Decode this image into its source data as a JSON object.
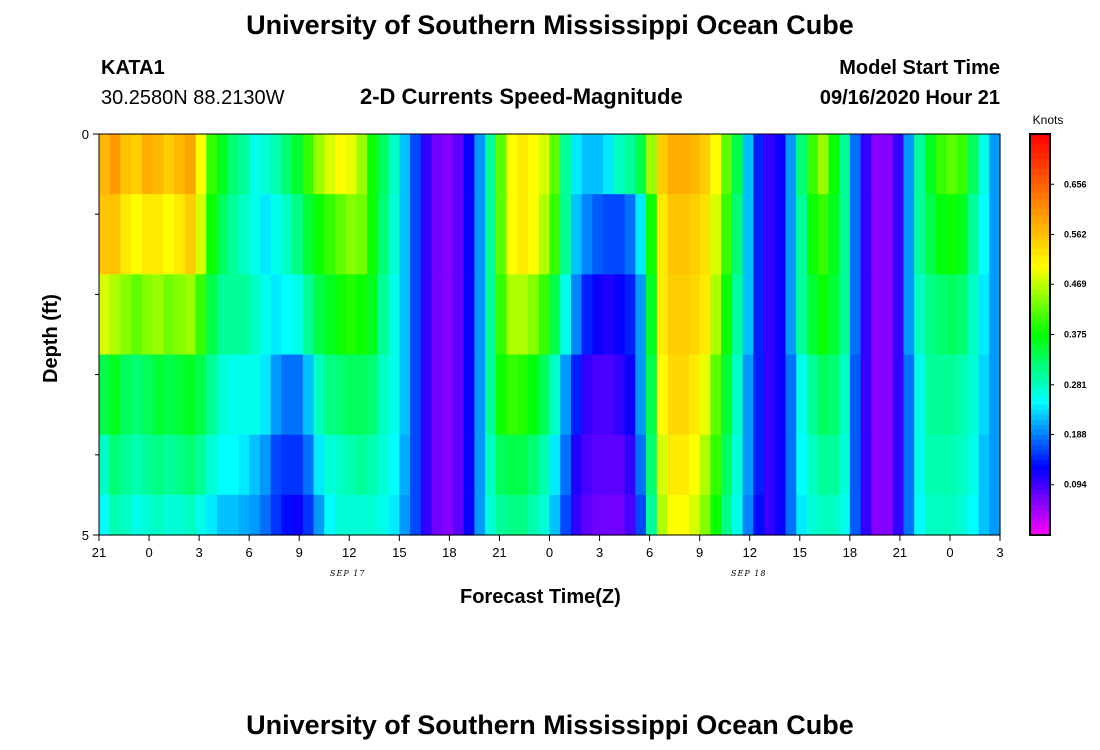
{
  "page": {
    "title": "University of Southern Mississippi Ocean Cube",
    "footer_title": "University of Southern Mississippi Ocean Cube",
    "station": "KATA1",
    "coords": "30.2580N 88.2130W",
    "subtitle": "2-D Currents Speed-Magnitude",
    "model_start_label": "Model Start Time",
    "model_start_value": "09/16/2020 Hour 21"
  },
  "chart_data": {
    "type": "heatmap",
    "title": "2-D Currents Speed-Magnitude",
    "xlabel": "Forecast Time(Z)",
    "ylabel": "Depth (ft)",
    "x_tick_labels": [
      "21",
      "0",
      "3",
      "6",
      "9",
      "12",
      "15",
      "18",
      "21",
      "0",
      "3",
      "6",
      "9",
      "12",
      "15",
      "18",
      "21",
      "0",
      "3"
    ],
    "x_date_labels": [
      {
        "label": "SEP 17",
        "tick_index": 4.9
      },
      {
        "label": "SEP 18",
        "tick_index": 12.9
      }
    ],
    "y_tick_labels": [
      "0",
      "5"
    ],
    "ylim": [
      0,
      5
    ],
    "y_minor_ticks": 4,
    "hours_range": [
      0,
      54
    ],
    "depth_layers": [
      0.25,
      1.25,
      2.25,
      3.25,
      4.25,
      4.75
    ],
    "colorbar": {
      "label": "Knots",
      "tick_values": [
        0.656,
        0.562,
        0.469,
        0.375,
        0.281,
        0.188,
        0.094
      ],
      "tick_labels": [
        "0.656",
        "0.562",
        "0.469",
        "0.375",
        "0.281",
        "0.188",
        "0.094"
      ],
      "range": [
        0.0,
        0.75
      ],
      "colors": [
        "#ff00ff",
        "#8000ff",
        "#0000ff",
        "#0080ff",
        "#00ffff",
        "#00ff80",
        "#00ff00",
        "#80ff00",
        "#ffff00",
        "#ffc000",
        "#ff8000",
        "#ff4000",
        "#ff0000"
      ]
    },
    "speed_rows": [
      [
        0.57,
        0.6,
        0.56,
        0.55,
        0.58,
        0.57,
        0.55,
        0.57,
        0.59,
        0.5,
        0.4,
        0.36,
        0.32,
        0.3,
        0.26,
        0.27,
        0.29,
        0.32,
        0.35,
        0.4,
        0.45,
        0.48,
        0.5,
        0.49,
        0.45,
        0.38,
        0.33,
        0.28,
        0.22,
        0.16,
        0.1,
        0.07,
        0.06,
        0.08,
        0.12,
        0.2,
        0.3,
        0.42,
        0.5,
        0.52,
        0.5,
        0.48,
        0.42,
        0.3,
        0.24,
        0.22,
        0.22,
        0.24,
        0.28,
        0.3,
        0.34,
        0.45,
        0.55,
        0.58,
        0.58,
        0.57,
        0.55,
        0.5,
        0.42,
        0.34,
        0.22,
        0.14,
        0.1,
        0.12,
        0.2,
        0.32,
        0.4,
        0.45,
        0.38,
        0.3,
        0.18,
        0.1,
        0.06,
        0.06,
        0.1,
        0.2,
        0.3,
        0.36,
        0.4,
        0.42,
        0.4,
        0.33,
        0.26,
        0.2
      ],
      [
        0.56,
        0.56,
        0.52,
        0.5,
        0.52,
        0.52,
        0.5,
        0.52,
        0.55,
        0.48,
        0.38,
        0.33,
        0.3,
        0.28,
        0.26,
        0.24,
        0.26,
        0.28,
        0.31,
        0.35,
        0.38,
        0.4,
        0.42,
        0.44,
        0.43,
        0.38,
        0.32,
        0.27,
        0.22,
        0.16,
        0.1,
        0.07,
        0.06,
        0.08,
        0.12,
        0.2,
        0.3,
        0.42,
        0.5,
        0.52,
        0.5,
        0.46,
        0.4,
        0.3,
        0.22,
        0.19,
        0.17,
        0.16,
        0.16,
        0.18,
        0.24,
        0.38,
        0.52,
        0.56,
        0.56,
        0.55,
        0.53,
        0.48,
        0.4,
        0.32,
        0.22,
        0.14,
        0.1,
        0.12,
        0.2,
        0.3,
        0.38,
        0.4,
        0.36,
        0.3,
        0.18,
        0.1,
        0.06,
        0.06,
        0.1,
        0.2,
        0.3,
        0.34,
        0.37,
        0.38,
        0.36,
        0.3,
        0.25,
        0.2
      ],
      [
        0.48,
        0.46,
        0.44,
        0.42,
        0.44,
        0.45,
        0.43,
        0.44,
        0.45,
        0.4,
        0.34,
        0.3,
        0.3,
        0.3,
        0.28,
        0.26,
        0.24,
        0.25,
        0.26,
        0.3,
        0.34,
        0.36,
        0.38,
        0.39,
        0.38,
        0.36,
        0.3,
        0.26,
        0.22,
        0.16,
        0.1,
        0.07,
        0.06,
        0.08,
        0.12,
        0.2,
        0.3,
        0.4,
        0.46,
        0.46,
        0.44,
        0.4,
        0.34,
        0.26,
        0.19,
        0.14,
        0.12,
        0.11,
        0.12,
        0.14,
        0.2,
        0.36,
        0.52,
        0.55,
        0.55,
        0.54,
        0.52,
        0.46,
        0.38,
        0.3,
        0.22,
        0.14,
        0.1,
        0.12,
        0.2,
        0.3,
        0.35,
        0.38,
        0.35,
        0.3,
        0.18,
        0.1,
        0.06,
        0.06,
        0.1,
        0.2,
        0.28,
        0.31,
        0.32,
        0.33,
        0.32,
        0.28,
        0.24,
        0.2
      ],
      [
        0.34,
        0.36,
        0.33,
        0.32,
        0.33,
        0.35,
        0.34,
        0.35,
        0.36,
        0.34,
        0.3,
        0.27,
        0.26,
        0.26,
        0.26,
        0.24,
        0.2,
        0.18,
        0.18,
        0.22,
        0.28,
        0.31,
        0.32,
        0.33,
        0.33,
        0.32,
        0.28,
        0.26,
        0.22,
        0.16,
        0.1,
        0.07,
        0.06,
        0.08,
        0.12,
        0.2,
        0.3,
        0.38,
        0.4,
        0.39,
        0.37,
        0.33,
        0.28,
        0.2,
        0.14,
        0.1,
        0.09,
        0.09,
        0.1,
        0.12,
        0.2,
        0.34,
        0.5,
        0.54,
        0.54,
        0.52,
        0.49,
        0.42,
        0.35,
        0.28,
        0.2,
        0.14,
        0.1,
        0.12,
        0.18,
        0.26,
        0.3,
        0.33,
        0.32,
        0.28,
        0.17,
        0.1,
        0.06,
        0.06,
        0.1,
        0.18,
        0.26,
        0.3,
        0.3,
        0.3,
        0.29,
        0.27,
        0.23,
        0.2
      ],
      [
        0.28,
        0.32,
        0.3,
        0.29,
        0.3,
        0.31,
        0.3,
        0.31,
        0.32,
        0.3,
        0.27,
        0.25,
        0.25,
        0.24,
        0.22,
        0.2,
        0.16,
        0.15,
        0.15,
        0.18,
        0.24,
        0.27,
        0.28,
        0.29,
        0.3,
        0.29,
        0.27,
        0.25,
        0.21,
        0.16,
        0.1,
        0.07,
        0.06,
        0.08,
        0.12,
        0.2,
        0.28,
        0.33,
        0.34,
        0.34,
        0.32,
        0.29,
        0.24,
        0.18,
        0.11,
        0.09,
        0.08,
        0.08,
        0.08,
        0.1,
        0.18,
        0.32,
        0.48,
        0.52,
        0.52,
        0.5,
        0.46,
        0.4,
        0.33,
        0.27,
        0.2,
        0.14,
        0.1,
        0.12,
        0.18,
        0.25,
        0.28,
        0.3,
        0.3,
        0.27,
        0.17,
        0.1,
        0.06,
        0.06,
        0.1,
        0.18,
        0.26,
        0.29,
        0.29,
        0.29,
        0.28,
        0.26,
        0.22,
        0.2
      ],
      [
        0.25,
        0.29,
        0.28,
        0.26,
        0.27,
        0.28,
        0.27,
        0.27,
        0.28,
        0.26,
        0.24,
        0.22,
        0.22,
        0.21,
        0.2,
        0.18,
        0.15,
        0.13,
        0.12,
        0.15,
        0.2,
        0.25,
        0.27,
        0.27,
        0.27,
        0.27,
        0.26,
        0.24,
        0.2,
        0.16,
        0.1,
        0.07,
        0.06,
        0.08,
        0.12,
        0.2,
        0.27,
        0.3,
        0.31,
        0.31,
        0.29,
        0.27,
        0.22,
        0.16,
        0.1,
        0.08,
        0.07,
        0.07,
        0.07,
        0.09,
        0.16,
        0.3,
        0.46,
        0.5,
        0.5,
        0.48,
        0.44,
        0.38,
        0.31,
        0.26,
        0.19,
        0.13,
        0.1,
        0.12,
        0.18,
        0.24,
        0.27,
        0.28,
        0.28,
        0.26,
        0.17,
        0.1,
        0.06,
        0.06,
        0.1,
        0.18,
        0.25,
        0.28,
        0.28,
        0.28,
        0.27,
        0.25,
        0.22,
        0.2
      ]
    ]
  }
}
